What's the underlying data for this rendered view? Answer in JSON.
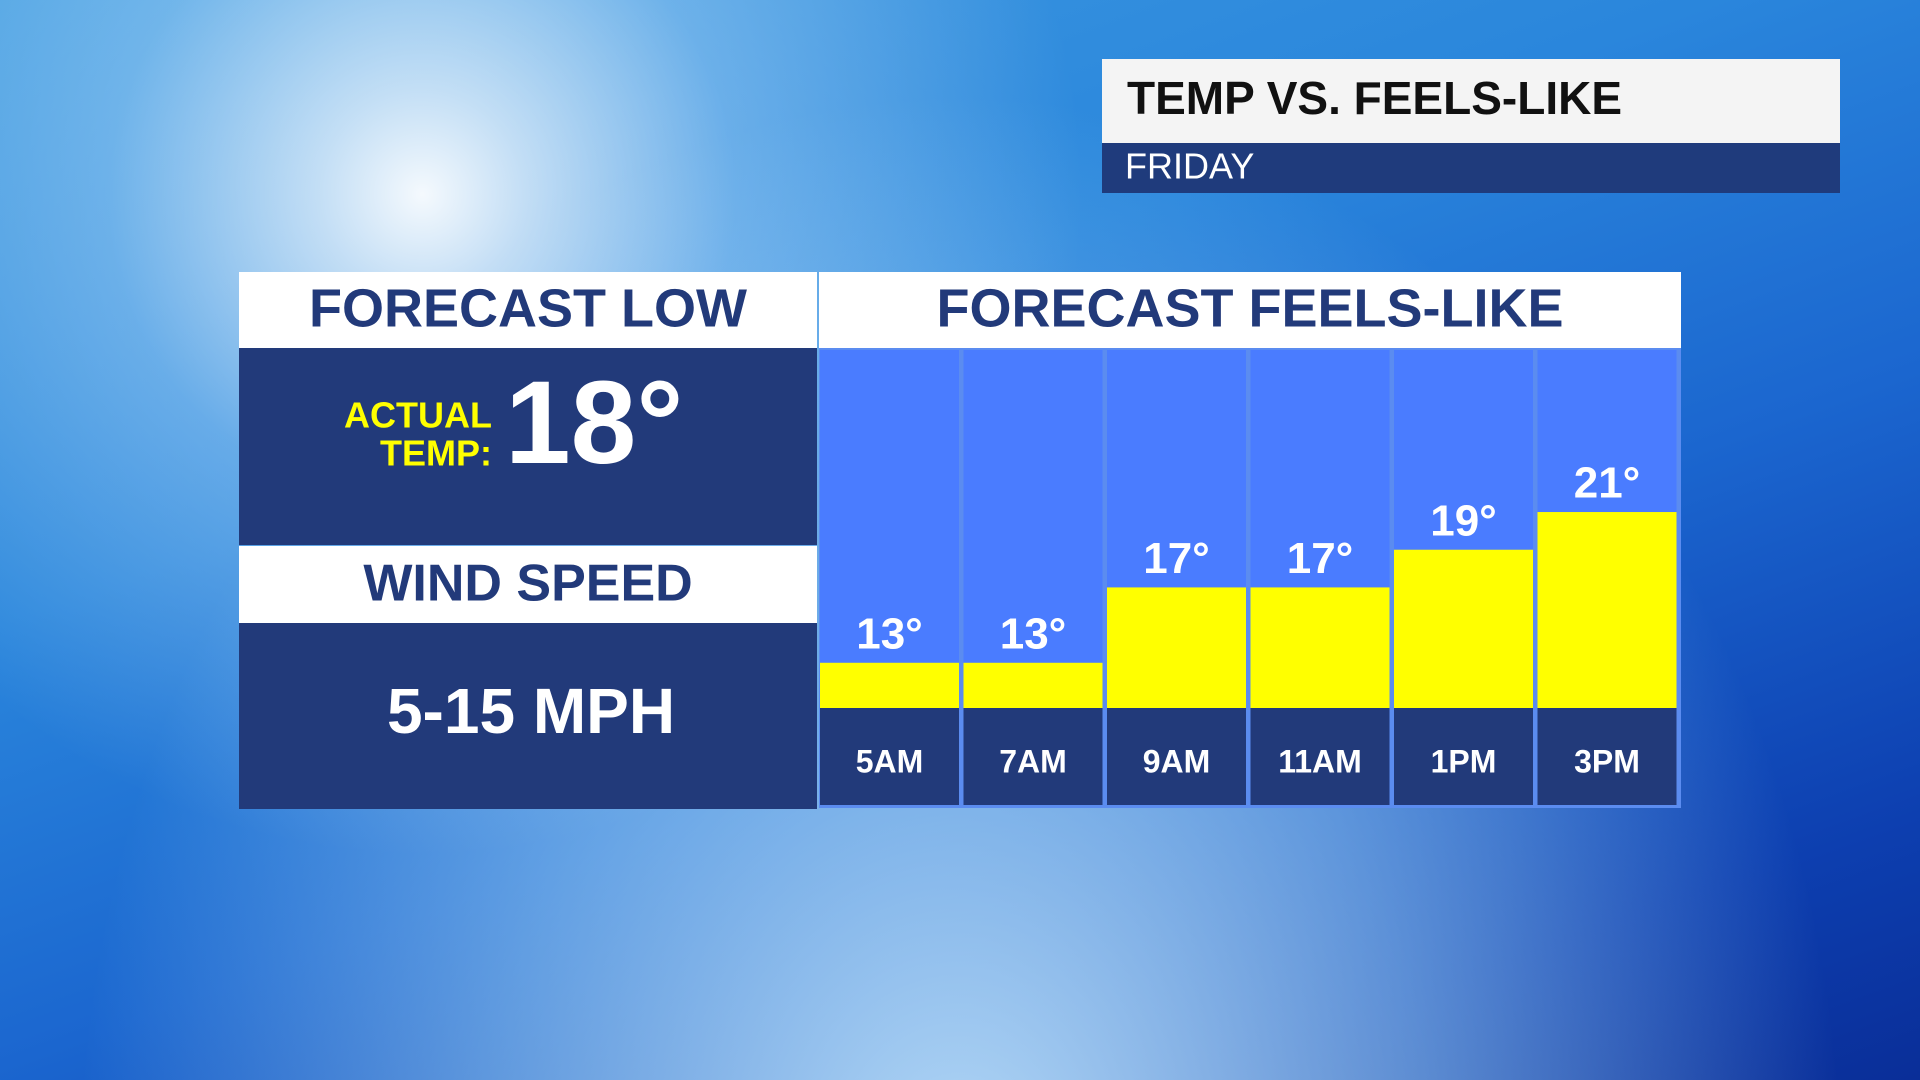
{
  "header": {
    "title": "TEMP VS. FEELS-LIKE",
    "subtitle": "FRIDAY"
  },
  "forecast_low": {
    "title": "FORECAST LOW",
    "label_line1": "ACTUAL",
    "label_line2": "TEMP:",
    "value": "18°"
  },
  "wind": {
    "title": "WIND SPEED",
    "value": "5-15 MPH"
  },
  "chart_data": {
    "type": "bar",
    "title": "FORECAST FEELS-LIKE",
    "categories": [
      "5AM",
      "7AM",
      "9AM",
      "11AM",
      "1PM",
      "3PM"
    ],
    "values": [
      13,
      13,
      17,
      17,
      19,
      21
    ],
    "value_labels": [
      "13°",
      "13°",
      "17°",
      "17°",
      "19°",
      "21°"
    ],
    "color": "#ffff00",
    "ylim": [
      10.6,
      29.6
    ]
  }
}
